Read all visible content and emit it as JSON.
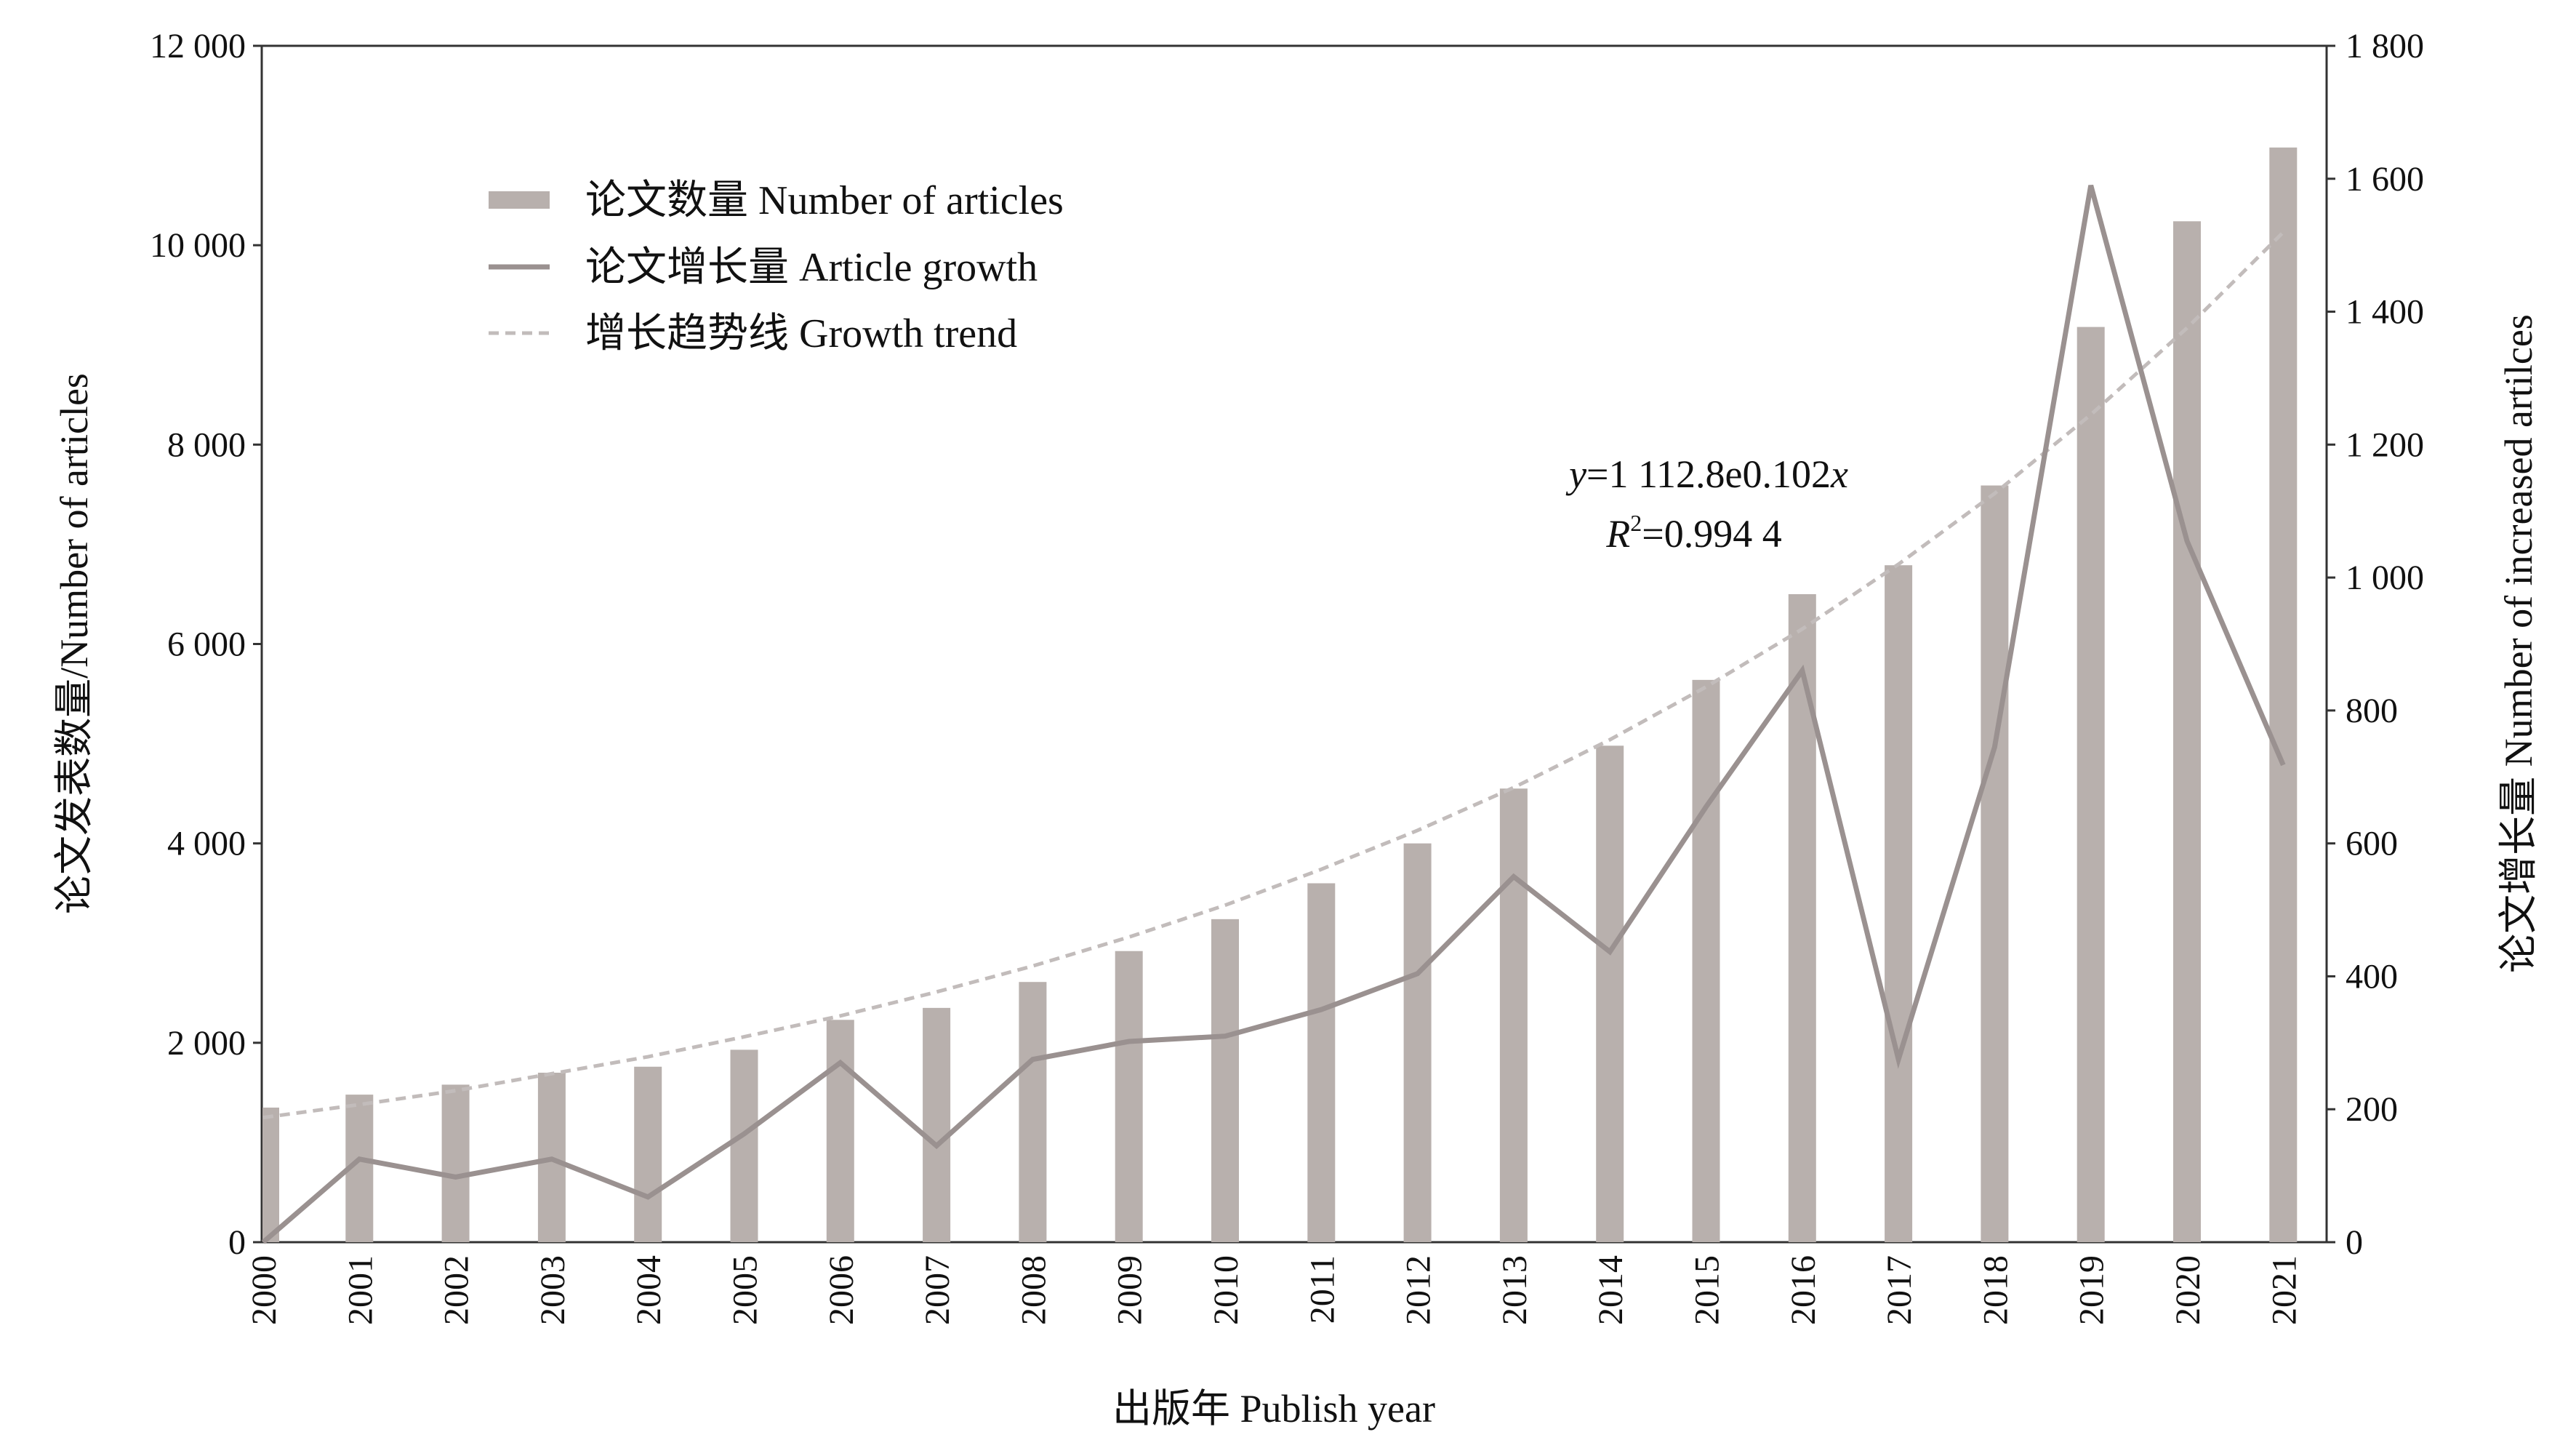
{
  "chart_data": {
    "type": "bar",
    "categories": [
      "2000",
      "2001",
      "2002",
      "2003",
      "2004",
      "2005",
      "2006",
      "2007",
      "2008",
      "2009",
      "2010",
      "2011",
      "2012",
      "2013",
      "2014",
      "2015",
      "2016",
      "2017",
      "2018",
      "2019",
      "2020",
      "2021"
    ],
    "series": [
      {
        "name": "论文数量 Number of articles",
        "kind": "bar",
        "axis": "left",
        "color": "#b8b0ad",
        "values": [
          1350,
          1480,
          1580,
          1700,
          1760,
          1930,
          2230,
          2350,
          2610,
          2920,
          3240,
          3600,
          4000,
          4550,
          4980,
          5640,
          6500,
          6790,
          7590,
          9180,
          10240,
          10980
        ]
      },
      {
        "name": "论文增长量 Article growth",
        "kind": "line",
        "axis": "right",
        "color": "#9a9190",
        "values": [
          0,
          125,
          98,
          125,
          68,
          163,
          270,
          145,
          275,
          302,
          310,
          350,
          404,
          550,
          437,
          655,
          860,
          275,
          745,
          1590,
          1055,
          718
        ]
      },
      {
        "name": "增长趋势线 Growth trend",
        "kind": "trendline",
        "axis": "left",
        "color": "#c2bcbb",
        "values": [
          1250,
          1380,
          1520,
          1690,
          1860,
          2060,
          2270,
          2510,
          2770,
          3060,
          3380,
          3740,
          4130,
          4560,
          5040,
          5570,
          6150,
          6800,
          7510,
          8300,
          9170,
          10130
        ]
      }
    ],
    "title": "",
    "xlabel": "出版年 Publish year",
    "ylabel_left": "论文发表数量/Number of articles",
    "ylabel_right": "论文增长量 Number of increased artilces",
    "ylim_left": [
      0,
      12000
    ],
    "ylim_right": [
      0,
      1800
    ],
    "yticks_left": [
      "0",
      "2 000",
      "4 000",
      "6 000",
      "8 000",
      "10 000",
      "12 000"
    ],
    "yticks_right": [
      "0",
      "200",
      "400",
      "600",
      "800",
      "1 000",
      "1 200",
      "1 400",
      "1 600",
      "1 800"
    ],
    "annotation": {
      "equation": {
        "y": "y",
        "eq": "=1 112.8e0.102",
        "x": "x"
      },
      "r2": {
        "r": "R",
        "sup": "2",
        "val": "=0.994 4"
      }
    },
    "grid": false,
    "legend_position": "top-left"
  }
}
